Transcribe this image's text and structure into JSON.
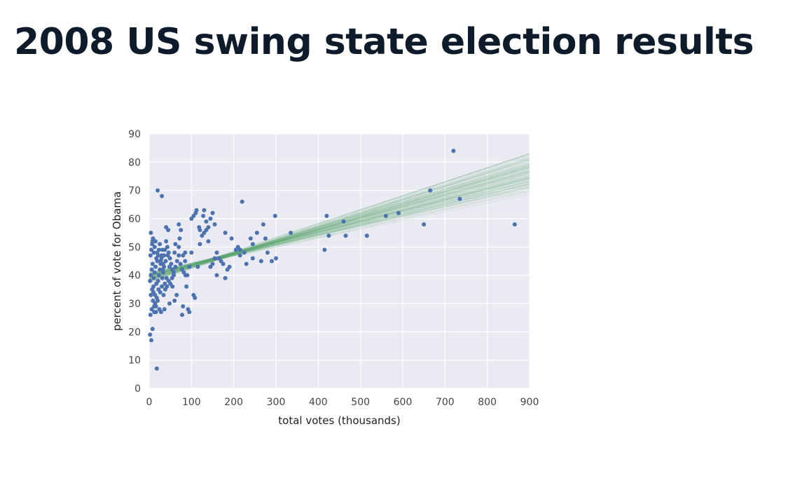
{
  "slide": {
    "title": "2008 US swing state election results"
  },
  "chart_data": {
    "type": "scatter",
    "title": "",
    "xlabel": "total votes (thousands)",
    "ylabel": "percent of vote for Obama",
    "xlim": [
      0,
      900
    ],
    "ylim": [
      0,
      90
    ],
    "xticks": [
      "0",
      "100",
      "200",
      "300",
      "400",
      "500",
      "600",
      "700",
      "800",
      "900"
    ],
    "yticks": [
      "0",
      "10",
      "20",
      "30",
      "40",
      "50",
      "60",
      "70",
      "80",
      "90"
    ],
    "grid": true,
    "legend": "none",
    "colors": {
      "background": "#eaeaf2",
      "grid": "#ffffff",
      "points": "#4c72b0",
      "lines": "#55a868"
    },
    "points": [
      [
        2,
        19
      ],
      [
        5,
        17
      ],
      [
        8,
        21
      ],
      [
        18,
        7
      ],
      [
        20,
        70
      ],
      [
        30,
        68
      ],
      [
        3,
        26
      ],
      [
        6,
        28
      ],
      [
        9,
        31
      ],
      [
        12,
        27
      ],
      [
        4,
        33
      ],
      [
        7,
        35
      ],
      [
        10,
        36
      ],
      [
        14,
        30
      ],
      [
        16,
        29
      ],
      [
        2,
        38
      ],
      [
        4,
        40
      ],
      [
        6,
        42
      ],
      [
        8,
        44
      ],
      [
        11,
        39
      ],
      [
        13,
        41
      ],
      [
        15,
        43
      ],
      [
        17,
        37
      ],
      [
        19,
        45
      ],
      [
        21,
        38
      ],
      [
        23,
        40
      ],
      [
        25,
        42
      ],
      [
        27,
        44
      ],
      [
        29,
        46
      ],
      [
        31,
        39
      ],
      [
        33,
        41
      ],
      [
        35,
        43
      ],
      [
        37,
        37
      ],
      [
        39,
        45
      ],
      [
        41,
        39
      ],
      [
        3,
        47
      ],
      [
        5,
        49
      ],
      [
        7,
        51
      ],
      [
        9,
        53
      ],
      [
        11,
        48
      ],
      [
        13,
        50
      ],
      [
        15,
        52
      ],
      [
        17,
        46
      ],
      [
        19,
        48
      ],
      [
        21,
        47
      ],
      [
        23,
        49
      ],
      [
        25,
        51
      ],
      [
        27,
        45
      ],
      [
        29,
        47
      ],
      [
        31,
        49
      ],
      [
        33,
        44
      ],
      [
        35,
        47
      ],
      [
        37,
        49
      ],
      [
        40,
        52
      ],
      [
        43,
        50
      ],
      [
        46,
        48
      ],
      [
        49,
        46
      ],
      [
        52,
        44
      ],
      [
        55,
        42
      ],
      [
        58,
        40
      ],
      [
        10,
        34
      ],
      [
        14,
        33
      ],
      [
        18,
        32
      ],
      [
        22,
        35
      ],
      [
        26,
        34
      ],
      [
        30,
        36
      ],
      [
        34,
        33
      ],
      [
        38,
        35
      ],
      [
        42,
        36
      ],
      [
        46,
        38
      ],
      [
        50,
        37
      ],
      [
        54,
        39
      ],
      [
        58,
        41
      ],
      [
        62,
        43
      ],
      [
        66,
        45
      ],
      [
        70,
        47
      ],
      [
        74,
        44
      ],
      [
        78,
        42
      ],
      [
        82,
        41
      ],
      [
        86,
        40
      ],
      [
        4,
        55
      ],
      [
        8,
        52
      ],
      [
        40,
        57
      ],
      [
        45,
        56
      ],
      [
        70,
        58
      ],
      [
        75,
        56
      ],
      [
        12,
        29
      ],
      [
        16,
        27
      ],
      [
        20,
        31
      ],
      [
        24,
        28
      ],
      [
        28,
        27
      ],
      [
        36,
        28
      ],
      [
        48,
        30
      ],
      [
        60,
        31
      ],
      [
        80,
        29
      ],
      [
        92,
        28
      ],
      [
        95,
        27
      ],
      [
        105,
        33
      ],
      [
        108,
        32
      ],
      [
        88,
        36
      ],
      [
        90,
        40
      ],
      [
        95,
        43
      ],
      [
        85,
        45
      ],
      [
        80,
        47
      ],
      [
        100,
        48
      ],
      [
        78,
        26
      ],
      [
        65,
        33
      ],
      [
        55,
        36
      ],
      [
        62,
        51
      ],
      [
        72,
        53
      ],
      [
        100,
        60
      ],
      [
        105,
        61
      ],
      [
        110,
        62
      ],
      [
        112,
        63
      ],
      [
        118,
        57
      ],
      [
        120,
        56
      ],
      [
        125,
        54
      ],
      [
        128,
        61
      ],
      [
        130,
        63
      ],
      [
        135,
        59
      ],
      [
        140,
        57
      ],
      [
        145,
        60
      ],
      [
        150,
        62
      ],
      [
        155,
        58
      ],
      [
        160,
        48
      ],
      [
        165,
        46
      ],
      [
        170,
        45
      ],
      [
        175,
        44
      ],
      [
        180,
        39
      ],
      [
        185,
        42
      ],
      [
        190,
        43
      ],
      [
        130,
        55
      ],
      [
        135,
        56
      ],
      [
        140,
        52
      ],
      [
        145,
        43
      ],
      [
        150,
        44
      ],
      [
        155,
        46
      ],
      [
        160,
        40
      ],
      [
        115,
        43
      ],
      [
        120,
        51
      ],
      [
        210,
        50
      ],
      [
        215,
        49
      ],
      [
        220,
        66
      ],
      [
        225,
        48
      ],
      [
        230,
        44
      ],
      [
        240,
        53
      ],
      [
        245,
        46
      ],
      [
        255,
        55
      ],
      [
        265,
        45
      ],
      [
        270,
        58
      ],
      [
        275,
        53
      ],
      [
        290,
        45
      ],
      [
        298,
        61
      ],
      [
        335,
        55
      ],
      [
        415,
        49
      ],
      [
        420,
        61
      ],
      [
        425,
        54
      ],
      [
        460,
        59
      ],
      [
        465,
        54
      ],
      [
        515,
        54
      ],
      [
        560,
        61
      ],
      [
        590,
        62
      ],
      [
        650,
        58
      ],
      [
        665,
        70
      ],
      [
        720,
        84
      ],
      [
        735,
        67
      ],
      [
        865,
        58
      ],
      [
        180,
        55
      ],
      [
        195,
        53
      ],
      [
        245,
        51
      ],
      [
        280,
        48
      ],
      [
        300,
        46
      ],
      [
        215,
        47
      ],
      [
        205,
        49
      ],
      [
        85,
        48
      ],
      [
        70,
        50
      ],
      [
        60,
        48
      ],
      [
        48,
        43
      ],
      [
        44,
        47
      ],
      [
        32,
        42
      ]
    ],
    "fit_slope_range": [
      0.031,
      0.052
    ],
    "fit_intercept_range": [
      36.5,
      42.0
    ],
    "fit_line_count": 100
  }
}
